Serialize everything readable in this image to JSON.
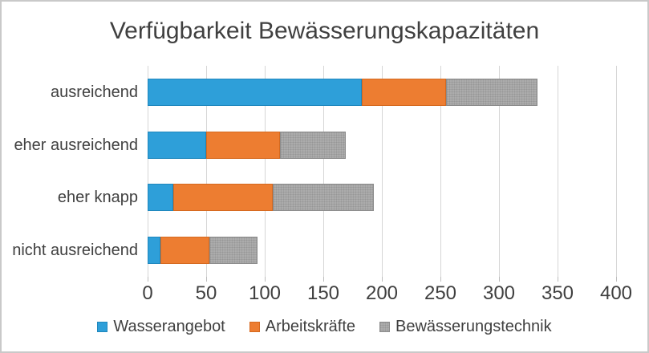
{
  "frame": {
    "border_color": "#c9c9c9",
    "background_color": "#ffffff",
    "text_color": "#404040",
    "gridline_color": "#d6d6d6"
  },
  "chart_data": {
    "type": "bar",
    "orientation": "horizontal",
    "stacked": true,
    "title": "Verfügbarkeit Bewässerungskapazitäten",
    "categories": [
      "ausreichend",
      "eher ausreichend",
      "eher knapp",
      "nicht ausreichend"
    ],
    "series": [
      {
        "name": "Wasserangebot",
        "color": "#2e9fd9",
        "border_color": "#1f87bd",
        "pattern": "solid",
        "values": [
          183,
          50,
          22,
          11
        ]
      },
      {
        "name": "Arbeitskräfte",
        "color": "#ed7d31",
        "border_color": "#d5691f",
        "pattern": "solid",
        "values": [
          72,
          63,
          85,
          42
        ]
      },
      {
        "name": "Bewässerungstechnik",
        "color": "#acacac",
        "border_color": "#8c8c8c",
        "pattern": "dotted",
        "values": [
          78,
          56,
          86,
          41
        ]
      }
    ],
    "totals": [
      333,
      169,
      193,
      94
    ],
    "xlim": [
      0,
      400
    ],
    "x_ticks": [
      0,
      50,
      100,
      150,
      200,
      250,
      300,
      350,
      400
    ],
    "xlabel": "",
    "ylabel": "",
    "grid": true,
    "legend_position": "bottom"
  }
}
